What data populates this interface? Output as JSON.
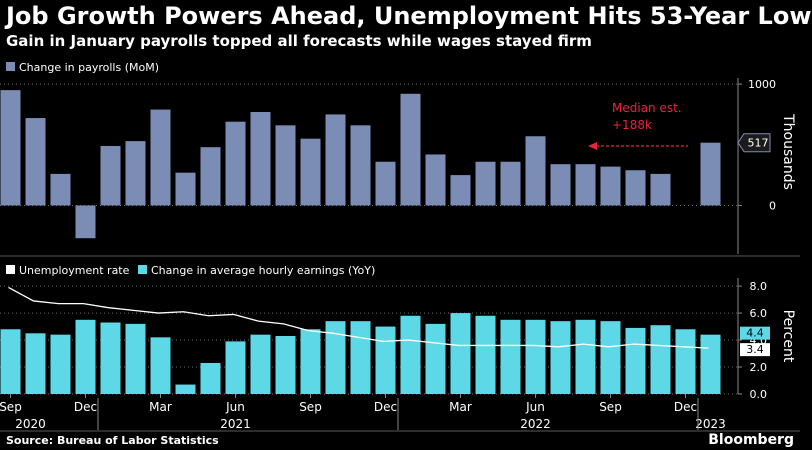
{
  "header": {
    "title": "Job Growth Powers Ahead, Unemployment Hits 53-Year Low",
    "subtitle": "Gain in January payrolls topped all forecasts while wages stayed firm"
  },
  "footer": {
    "source": "Source: Bureau of Labor Statistics",
    "brand": "Bloomberg"
  },
  "colors": {
    "background": "#000000",
    "payrolls_bar": "#7b8db4",
    "earnings_bar": "#5cd8e6",
    "unemployment_line": "#ffffff",
    "annotation": "#e8243c",
    "separator": "#5a5a5a"
  },
  "chart_data": [
    {
      "type": "bar",
      "legend": [
        "Change in payrolls (MoM)"
      ],
      "ylabel": "Thousands",
      "ylim": [
        -400,
        1050
      ],
      "yticks": [
        0,
        1000
      ],
      "categories": [
        "Sep 2020",
        "Oct 2020",
        "Nov 2020",
        "Dec 2020",
        "Jan 2021",
        "Feb 2021",
        "Mar 2021",
        "Apr 2021",
        "May 2021",
        "Jun 2021",
        "Jul 2021",
        "Aug 2021",
        "Sep 2021",
        "Oct 2021",
        "Nov 2021",
        "Dec 2021",
        "Jan 2022",
        "Feb 2022",
        "Mar 2022",
        "Apr 2022",
        "May 2022",
        "Jun 2022",
        "Jul 2022",
        "Aug 2022",
        "Sep 2022",
        "Oct 2022",
        "Nov 2022",
        "Dec 2022",
        "Jan 2023"
      ],
      "series": [
        {
          "name": "Change in payrolls (MoM)",
          "values": [
            950,
            720,
            260,
            -270,
            490,
            530,
            790,
            270,
            480,
            690,
            770,
            660,
            550,
            750,
            660,
            360,
            920,
            420,
            250,
            360,
            360,
            570,
            340,
            340,
            320,
            290,
            260,
            null,
            517
          ]
        }
      ],
      "last_value_label": "517",
      "annotation": {
        "text_line1": "Median est.",
        "text_line2": "+188k",
        "value": 188
      }
    },
    {
      "type": "bar",
      "legend": [
        "Unemployment rate",
        "Change in average hourly earnings (YoY)"
      ],
      "ylabel": "Percent",
      "ylim": [
        0,
        8.6
      ],
      "yticks": [
        "0.0",
        "2.0",
        "4.0",
        "6.0",
        "8.0"
      ],
      "x_month_labels": [
        "Sep",
        "Dec",
        "Mar",
        "Jun",
        "Sep",
        "Dec",
        "Mar",
        "Jun",
        "Sep",
        "Dec"
      ],
      "x_year_labels": [
        "2020",
        "2021",
        "2022",
        "2023"
      ],
      "categories": [
        "Sep 2020",
        "Oct 2020",
        "Nov 2020",
        "Dec 2020",
        "Jan 2021",
        "Feb 2021",
        "Mar 2021",
        "Apr 2021",
        "May 2021",
        "Jun 2021",
        "Jul 2021",
        "Aug 2021",
        "Sep 2021",
        "Oct 2021",
        "Nov 2021",
        "Dec 2021",
        "Jan 2022",
        "Feb 2022",
        "Mar 2022",
        "Apr 2022",
        "May 2022",
        "Jun 2022",
        "Jul 2022",
        "Aug 2022",
        "Sep 2022",
        "Oct 2022",
        "Nov 2022",
        "Dec 2022",
        "Jan 2023"
      ],
      "series": [
        {
          "name": "Change in average hourly earnings (YoY)",
          "kind": "bar",
          "values": [
            4.8,
            4.5,
            4.4,
            5.5,
            5.3,
            5.2,
            4.2,
            0.7,
            2.3,
            3.9,
            4.4,
            4.3,
            4.8,
            5.4,
            5.4,
            5.0,
            5.8,
            5.2,
            6.0,
            5.8,
            5.5,
            5.5,
            5.4,
            5.5,
            5.4,
            4.9,
            5.1,
            4.8,
            4.4
          ]
        },
        {
          "name": "Unemployment rate",
          "kind": "line",
          "values": [
            7.9,
            6.9,
            6.7,
            6.7,
            6.4,
            6.2,
            6.0,
            6.1,
            5.8,
            5.9,
            5.4,
            5.2,
            4.7,
            4.5,
            4.2,
            3.9,
            4.0,
            3.8,
            3.6,
            3.6,
            3.6,
            3.6,
            3.5,
            3.7,
            3.5,
            3.7,
            3.6,
            3.5,
            3.4
          ]
        }
      ],
      "value_labels": [
        "4.4",
        "3.4"
      ]
    }
  ]
}
